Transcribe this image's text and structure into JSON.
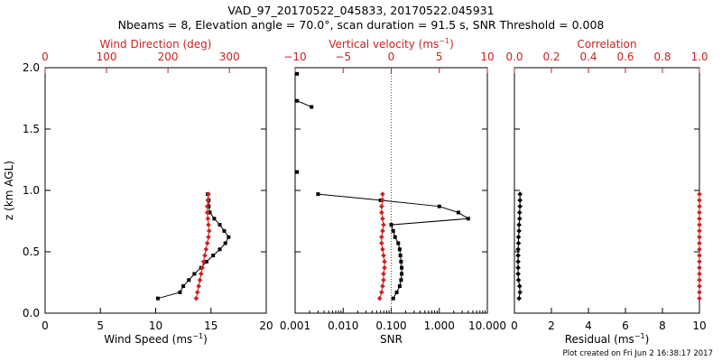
{
  "header": {
    "title": "VAD_97_20170522_045833, 20170522.045931",
    "subtitle": "Nbeams = 8, Elevation angle = 70.0°, scan duration = 91.5 s, SNR Threshold = 0.008"
  },
  "footer": {
    "text": "Plot created on Fri Jun  2 16:38:17 2017"
  },
  "colors": {
    "black": "#000000",
    "red": "#cc2222"
  },
  "chart_data": [
    {
      "type": "line",
      "ylabel": "z (km AGL)",
      "ylim": [
        0,
        2
      ],
      "y_ticks": [
        0.0,
        0.5,
        1.0,
        1.5,
        2.0
      ],
      "y_tick_labels": [
        "0.0",
        "0.5",
        "1.0",
        "1.5",
        "2.0"
      ],
      "bottom_axis": {
        "label": "Wind Speed (ms",
        "label_sup": "−1",
        "label_close": ")",
        "range": [
          0,
          20
        ],
        "ticks": [
          0,
          5,
          10,
          15,
          20
        ],
        "tick_labels": [
          "0",
          "5",
          "10",
          "15",
          "20"
        ]
      },
      "top_axis": {
        "label": "Wind Direction (deg)",
        "label_sup": "",
        "label_close": "",
        "range": [
          0,
          360
        ],
        "ticks": [
          0,
          100,
          200,
          300
        ],
        "tick_labels": [
          "0",
          "100",
          "200",
          "300"
        ]
      },
      "series": [
        {
          "axis": "bottom",
          "color": "#000000",
          "marker": "square",
          "x": [
            10.2,
            12.2,
            12.5,
            13.0,
            13.5,
            14.1,
            14.6,
            15.2,
            15.8,
            16.3,
            16.6,
            16.2,
            15.8,
            15.3,
            14.9,
            14.8,
            14.8,
            14.7
          ],
          "y": [
            0.12,
            0.17,
            0.22,
            0.27,
            0.32,
            0.37,
            0.42,
            0.47,
            0.52,
            0.57,
            0.62,
            0.67,
            0.72,
            0.77,
            0.82,
            0.87,
            0.92,
            0.97
          ]
        },
        {
          "axis": "top",
          "color": "#cc2222",
          "marker": "diamond",
          "x": [
            246,
            248,
            250,
            252,
            254,
            256,
            258,
            260,
            262,
            264,
            266,
            267,
            266,
            265,
            264,
            264,
            265,
            266
          ],
          "y": [
            0.12,
            0.17,
            0.22,
            0.27,
            0.32,
            0.37,
            0.42,
            0.47,
            0.52,
            0.57,
            0.62,
            0.67,
            0.72,
            0.77,
            0.82,
            0.87,
            0.92,
            0.97
          ]
        }
      ]
    },
    {
      "type": "line",
      "ylabel": "",
      "ylim": [
        0,
        2
      ],
      "y_ticks": [
        0.0,
        0.5,
        1.0,
        1.5,
        2.0
      ],
      "y_tick_labels": [],
      "bottom_axis": {
        "label": "SNR",
        "label_sup": "",
        "label_close": "",
        "range": [
          0.001,
          10
        ],
        "scale": "log",
        "ticks": [
          0.001,
          0.01,
          0.1,
          1,
          10
        ],
        "tick_labels": [
          "0.001",
          "0.010",
          "0.100",
          "1.000",
          "10.000"
        ]
      },
      "top_axis": {
        "label": "Vertical velocity (ms",
        "label_sup": "−1",
        "label_close": ")",
        "range": [
          -10,
          10
        ],
        "ticks": [
          -10,
          -5,
          0,
          5,
          10
        ],
        "tick_labels": [
          "−10",
          "−5",
          "0",
          "5",
          "10"
        ]
      },
      "reference_line": {
        "axis": "top",
        "value": 0,
        "color": "#cc2222",
        "style": "dotted"
      },
      "series": [
        {
          "axis": "bottom",
          "color": "#000000",
          "marker": "square",
          "x": [
            0.11,
            0.13,
            0.15,
            0.16,
            0.165,
            0.165,
            0.16,
            0.155,
            0.15,
            0.14,
            0.12,
            0.11,
            0.1,
            4.0,
            2.5,
            1.0,
            0.06,
            0.003
          ],
          "y": [
            0.12,
            0.17,
            0.22,
            0.27,
            0.32,
            0.37,
            0.42,
            0.47,
            0.52,
            0.57,
            0.62,
            0.67,
            0.72,
            0.77,
            0.82,
            0.87,
            0.92,
            0.97
          ]
        },
        {
          "axis": "top",
          "color": "#cc2222",
          "marker": "diamond",
          "x": [
            -1.2,
            -1.0,
            -0.9,
            -0.8,
            -0.8,
            -0.7,
            -0.7,
            -0.8,
            -0.9,
            -1.0,
            -1.0,
            -0.9,
            -0.8,
            -0.9,
            -1.0,
            -1.0,
            -0.9,
            -0.9
          ],
          "y": [
            0.12,
            0.17,
            0.22,
            0.27,
            0.32,
            0.37,
            0.42,
            0.47,
            0.52,
            0.57,
            0.62,
            0.67,
            0.72,
            0.77,
            0.82,
            0.87,
            0.92,
            0.97
          ]
        },
        {
          "axis": "bottom",
          "color": "#000000",
          "marker": "square",
          "connect": false,
          "x": [
            0.0011
          ],
          "y": [
            1.15
          ]
        },
        {
          "axis": "bottom",
          "color": "#000000",
          "marker": "square",
          "connect": true,
          "x": [
            0.0011,
            0.0022
          ],
          "y": [
            1.73,
            1.68
          ]
        },
        {
          "axis": "bottom",
          "color": "#000000",
          "marker": "square",
          "connect": false,
          "x": [
            0.0011
          ],
          "y": [
            1.95
          ]
        }
      ]
    },
    {
      "type": "line",
      "ylabel": "",
      "ylim": [
        0,
        2
      ],
      "y_ticks": [
        0.0,
        0.5,
        1.0,
        1.5,
        2.0
      ],
      "y_tick_labels": [],
      "bottom_axis": {
        "label": "Residual (ms",
        "label_sup": "−1",
        "label_close": ")",
        "range": [
          0,
          10
        ],
        "ticks": [
          0,
          2,
          4,
          6,
          8,
          10
        ],
        "tick_labels": [
          "0",
          "2",
          "4",
          "6",
          "8",
          "10"
        ]
      },
      "top_axis": {
        "label": "Correlation",
        "label_sup": "",
        "label_close": "",
        "range": [
          0,
          1
        ],
        "ticks": [
          0,
          0.2,
          0.4,
          0.6,
          0.8,
          1.0
        ],
        "tick_labels": [
          "0.0",
          "0.2",
          "0.4",
          "0.6",
          "0.8",
          "1.0"
        ]
      },
      "series": [
        {
          "axis": "bottom",
          "color": "#000000",
          "marker": "diamond",
          "x": [
            0.25,
            0.3,
            0.28,
            0.22,
            0.2,
            0.2,
            0.2,
            0.2,
            0.2,
            0.22,
            0.22,
            0.25,
            0.25,
            0.28,
            0.28,
            0.3,
            0.3,
            0.3
          ],
          "y": [
            0.12,
            0.17,
            0.22,
            0.27,
            0.32,
            0.37,
            0.42,
            0.47,
            0.52,
            0.57,
            0.62,
            0.67,
            0.72,
            0.77,
            0.82,
            0.87,
            0.92,
            0.97
          ]
        },
        {
          "axis": "top",
          "color": "#cc2222",
          "marker": "diamond",
          "x": [
            1.0,
            1.0,
            1.0,
            1.0,
            1.0,
            1.0,
            1.0,
            1.0,
            1.0,
            1.0,
            1.0,
            1.0,
            1.0,
            1.0,
            1.0,
            1.0,
            1.0,
            1.0
          ],
          "y": [
            0.12,
            0.17,
            0.22,
            0.27,
            0.32,
            0.37,
            0.42,
            0.47,
            0.52,
            0.57,
            0.62,
            0.67,
            0.72,
            0.77,
            0.82,
            0.87,
            0.92,
            0.97
          ]
        }
      ]
    }
  ]
}
